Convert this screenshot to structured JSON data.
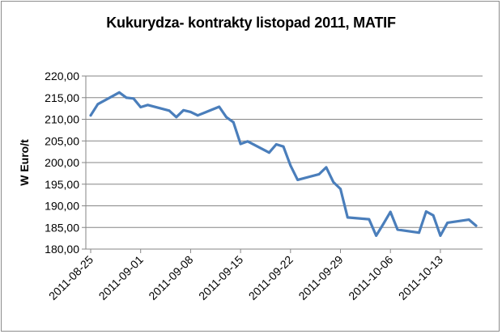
{
  "chart_data": {
    "type": "line",
    "title": "Kukurydza- kontrakty listopad 2011, MATIF",
    "xlabel": "",
    "ylabel": "W Euro/t",
    "ylim": [
      180,
      220
    ],
    "yticks": [
      "180,00",
      "185,00",
      "190,00",
      "195,00",
      "200,00",
      "205,00",
      "210,00",
      "215,00",
      "220,00"
    ],
    "xticks": [
      "2011-08-25",
      "2011-09-01",
      "2011-09-08",
      "2011-09-15",
      "2011-09-22",
      "2011-09-29",
      "2011-10-06",
      "2011-10-13"
    ],
    "grid": "horizontal",
    "legend": "none",
    "series_color": "#4a7ebb",
    "series": [
      {
        "x": [
          "2011-08-25",
          "2011-08-26",
          "2011-08-29",
          "2011-08-30",
          "2011-08-31",
          "2011-09-01",
          "2011-09-02",
          "2011-09-05",
          "2011-09-06",
          "2011-09-07",
          "2011-09-08",
          "2011-09-09",
          "2011-09-12",
          "2011-09-13",
          "2011-09-14",
          "2011-09-15",
          "2011-09-16",
          "2011-09-19",
          "2011-09-20",
          "2011-09-21",
          "2011-09-22",
          "2011-09-23",
          "2011-09-26",
          "2011-09-27",
          "2011-09-28",
          "2011-09-29",
          "2011-09-30",
          "2011-10-03",
          "2011-10-04",
          "2011-10-05",
          "2011-10-06",
          "2011-10-07",
          "2011-10-10",
          "2011-10-11",
          "2011-10-12",
          "2011-10-13",
          "2011-10-14",
          "2011-10-17",
          "2011-10-18"
        ],
        "values": [
          210.9,
          213.5,
          216.2,
          215.0,
          214.8,
          212.8,
          213.3,
          212.0,
          210.5,
          212.1,
          211.7,
          210.9,
          212.9,
          210.5,
          209.3,
          204.3,
          204.9,
          202.3,
          204.2,
          203.7,
          199.3,
          196.0,
          197.3,
          198.9,
          195.5,
          193.9,
          187.3,
          186.9,
          183.1,
          185.8,
          188.6,
          184.5,
          183.8,
          188.7,
          187.8,
          183.1,
          186.1,
          186.8,
          185.4
        ]
      }
    ]
  }
}
